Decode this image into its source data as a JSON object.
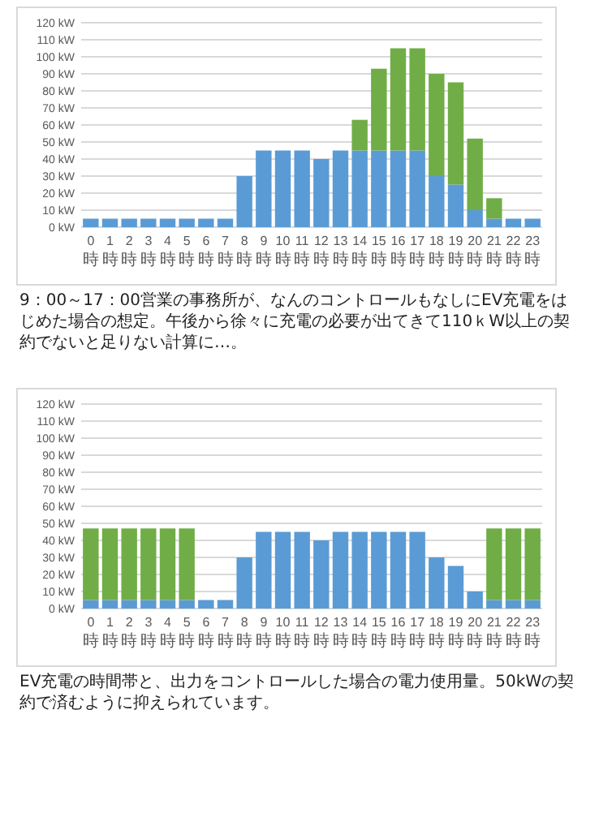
{
  "chart_data": [
    {
      "type": "bar",
      "stacked": true,
      "grid": "y",
      "categories": [
        "0時",
        "1時",
        "2時",
        "3時",
        "4時",
        "5時",
        "6時",
        "7時",
        "8時",
        "9時",
        "10時",
        "11時",
        "12時",
        "13時",
        "14時",
        "15時",
        "16時",
        "17時",
        "18時",
        "19時",
        "20時",
        "21時",
        "22時",
        "23時"
      ],
      "series": [
        {
          "color": "#5b9bd5",
          "values": [
            5,
            5,
            5,
            5,
            5,
            5,
            5,
            5,
            30,
            45,
            45,
            45,
            40,
            45,
            45,
            45,
            45,
            45,
            30,
            25,
            10,
            5,
            5,
            5
          ]
        },
        {
          "color": "#70ad47",
          "values": [
            null,
            null,
            null,
            null,
            null,
            null,
            null,
            null,
            null,
            null,
            null,
            null,
            null,
            null,
            18,
            48,
            60,
            60,
            60,
            60,
            42,
            12,
            null,
            null
          ]
        }
      ],
      "ylim": [
        0,
        120
      ],
      "yticks": [
        {
          "value": 0,
          "label": "0 kW"
        },
        {
          "value": 10,
          "label": "10 kW"
        },
        {
          "value": 20,
          "label": "20 kW"
        },
        {
          "value": 30,
          "label": "30 kW"
        },
        {
          "value": 40,
          "label": "40 kW"
        },
        {
          "value": 50,
          "label": "50 kW"
        },
        {
          "value": 60,
          "label": "60 kW"
        },
        {
          "value": 70,
          "label": "70 kW"
        },
        {
          "value": 80,
          "label": "80 kW"
        },
        {
          "value": 90,
          "label": "90 kW"
        },
        {
          "value": 100,
          "label": "100 kW"
        },
        {
          "value": 110,
          "label": "110 kW"
        },
        {
          "value": 120,
          "label": "120 kW"
        }
      ],
      "annotations": [
        "9：00～17：00営業の事務所が、なんのコントロールもなしにEV充電をはじめた場合の想定。午後から徐々に充電の必要が出てきて110ｋW以上の契約でないと足りない計算に…。"
      ]
    },
    {
      "type": "bar",
      "stacked": true,
      "grid": "y",
      "categories": [
        "0時",
        "1時",
        "2時",
        "3時",
        "4時",
        "5時",
        "6時",
        "7時",
        "8時",
        "9時",
        "10時",
        "11時",
        "12時",
        "13時",
        "14時",
        "15時",
        "16時",
        "17時",
        "18時",
        "19時",
        "20時",
        "21時",
        "22時",
        "23時"
      ],
      "series": [
        {
          "color": "#5b9bd5",
          "values": [
            5,
            5,
            5,
            5,
            5,
            5,
            5,
            5,
            30,
            45,
            45,
            45,
            40,
            45,
            45,
            45,
            45,
            45,
            30,
            25,
            10,
            5,
            5,
            5
          ]
        },
        {
          "color": "#70ad47",
          "values": [
            42,
            42,
            42,
            42,
            42,
            42,
            null,
            null,
            null,
            null,
            null,
            null,
            null,
            null,
            null,
            null,
            null,
            null,
            null,
            null,
            null,
            42,
            42,
            42
          ]
        }
      ],
      "ylim": [
        0,
        120
      ],
      "yticks": [
        {
          "value": 0,
          "label": "0 kW"
        },
        {
          "value": 10,
          "label": "10 kW"
        },
        {
          "value": 20,
          "label": "20 kW"
        },
        {
          "value": 30,
          "label": "30 kW"
        },
        {
          "value": 40,
          "label": "40 kW"
        },
        {
          "value": 50,
          "label": "50 kW"
        },
        {
          "value": 60,
          "label": "60 kW"
        },
        {
          "value": 70,
          "label": "70 kW"
        },
        {
          "value": 80,
          "label": "80 kW"
        },
        {
          "value": 90,
          "label": "90 kW"
        },
        {
          "value": 100,
          "label": "100 kW"
        },
        {
          "value": 110,
          "label": "110 kW"
        },
        {
          "value": 120,
          "label": "120 kW"
        }
      ],
      "annotations": [
        "EV充電の時間帯と、出力をコントロールした場合の電力使用量。50kWの契約で済むように抑えられています。"
      ]
    }
  ]
}
